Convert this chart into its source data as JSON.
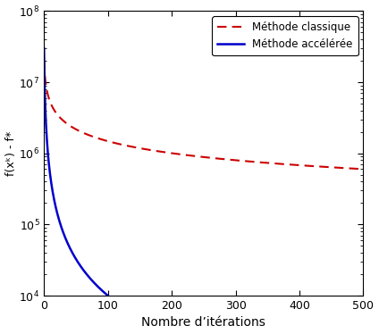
{
  "title": "",
  "xlabel": "Nombre d’itérations",
  "ylabel": "f(xᵏ) - f*",
  "xlim": [
    0,
    500
  ],
  "ylim_log": [
    4,
    8
  ],
  "xticks": [
    0,
    100,
    200,
    300,
    400,
    500
  ],
  "line_acceleree_color": "#0000cc",
  "line_classique_color": "#cc0000",
  "legend_acceleree": "Méthode accélérée",
  "legend_classique": "Méthode classique",
  "bg_color": "#ffffff",
  "f0": 30000000.0,
  "f0_class": 20000000.0
}
